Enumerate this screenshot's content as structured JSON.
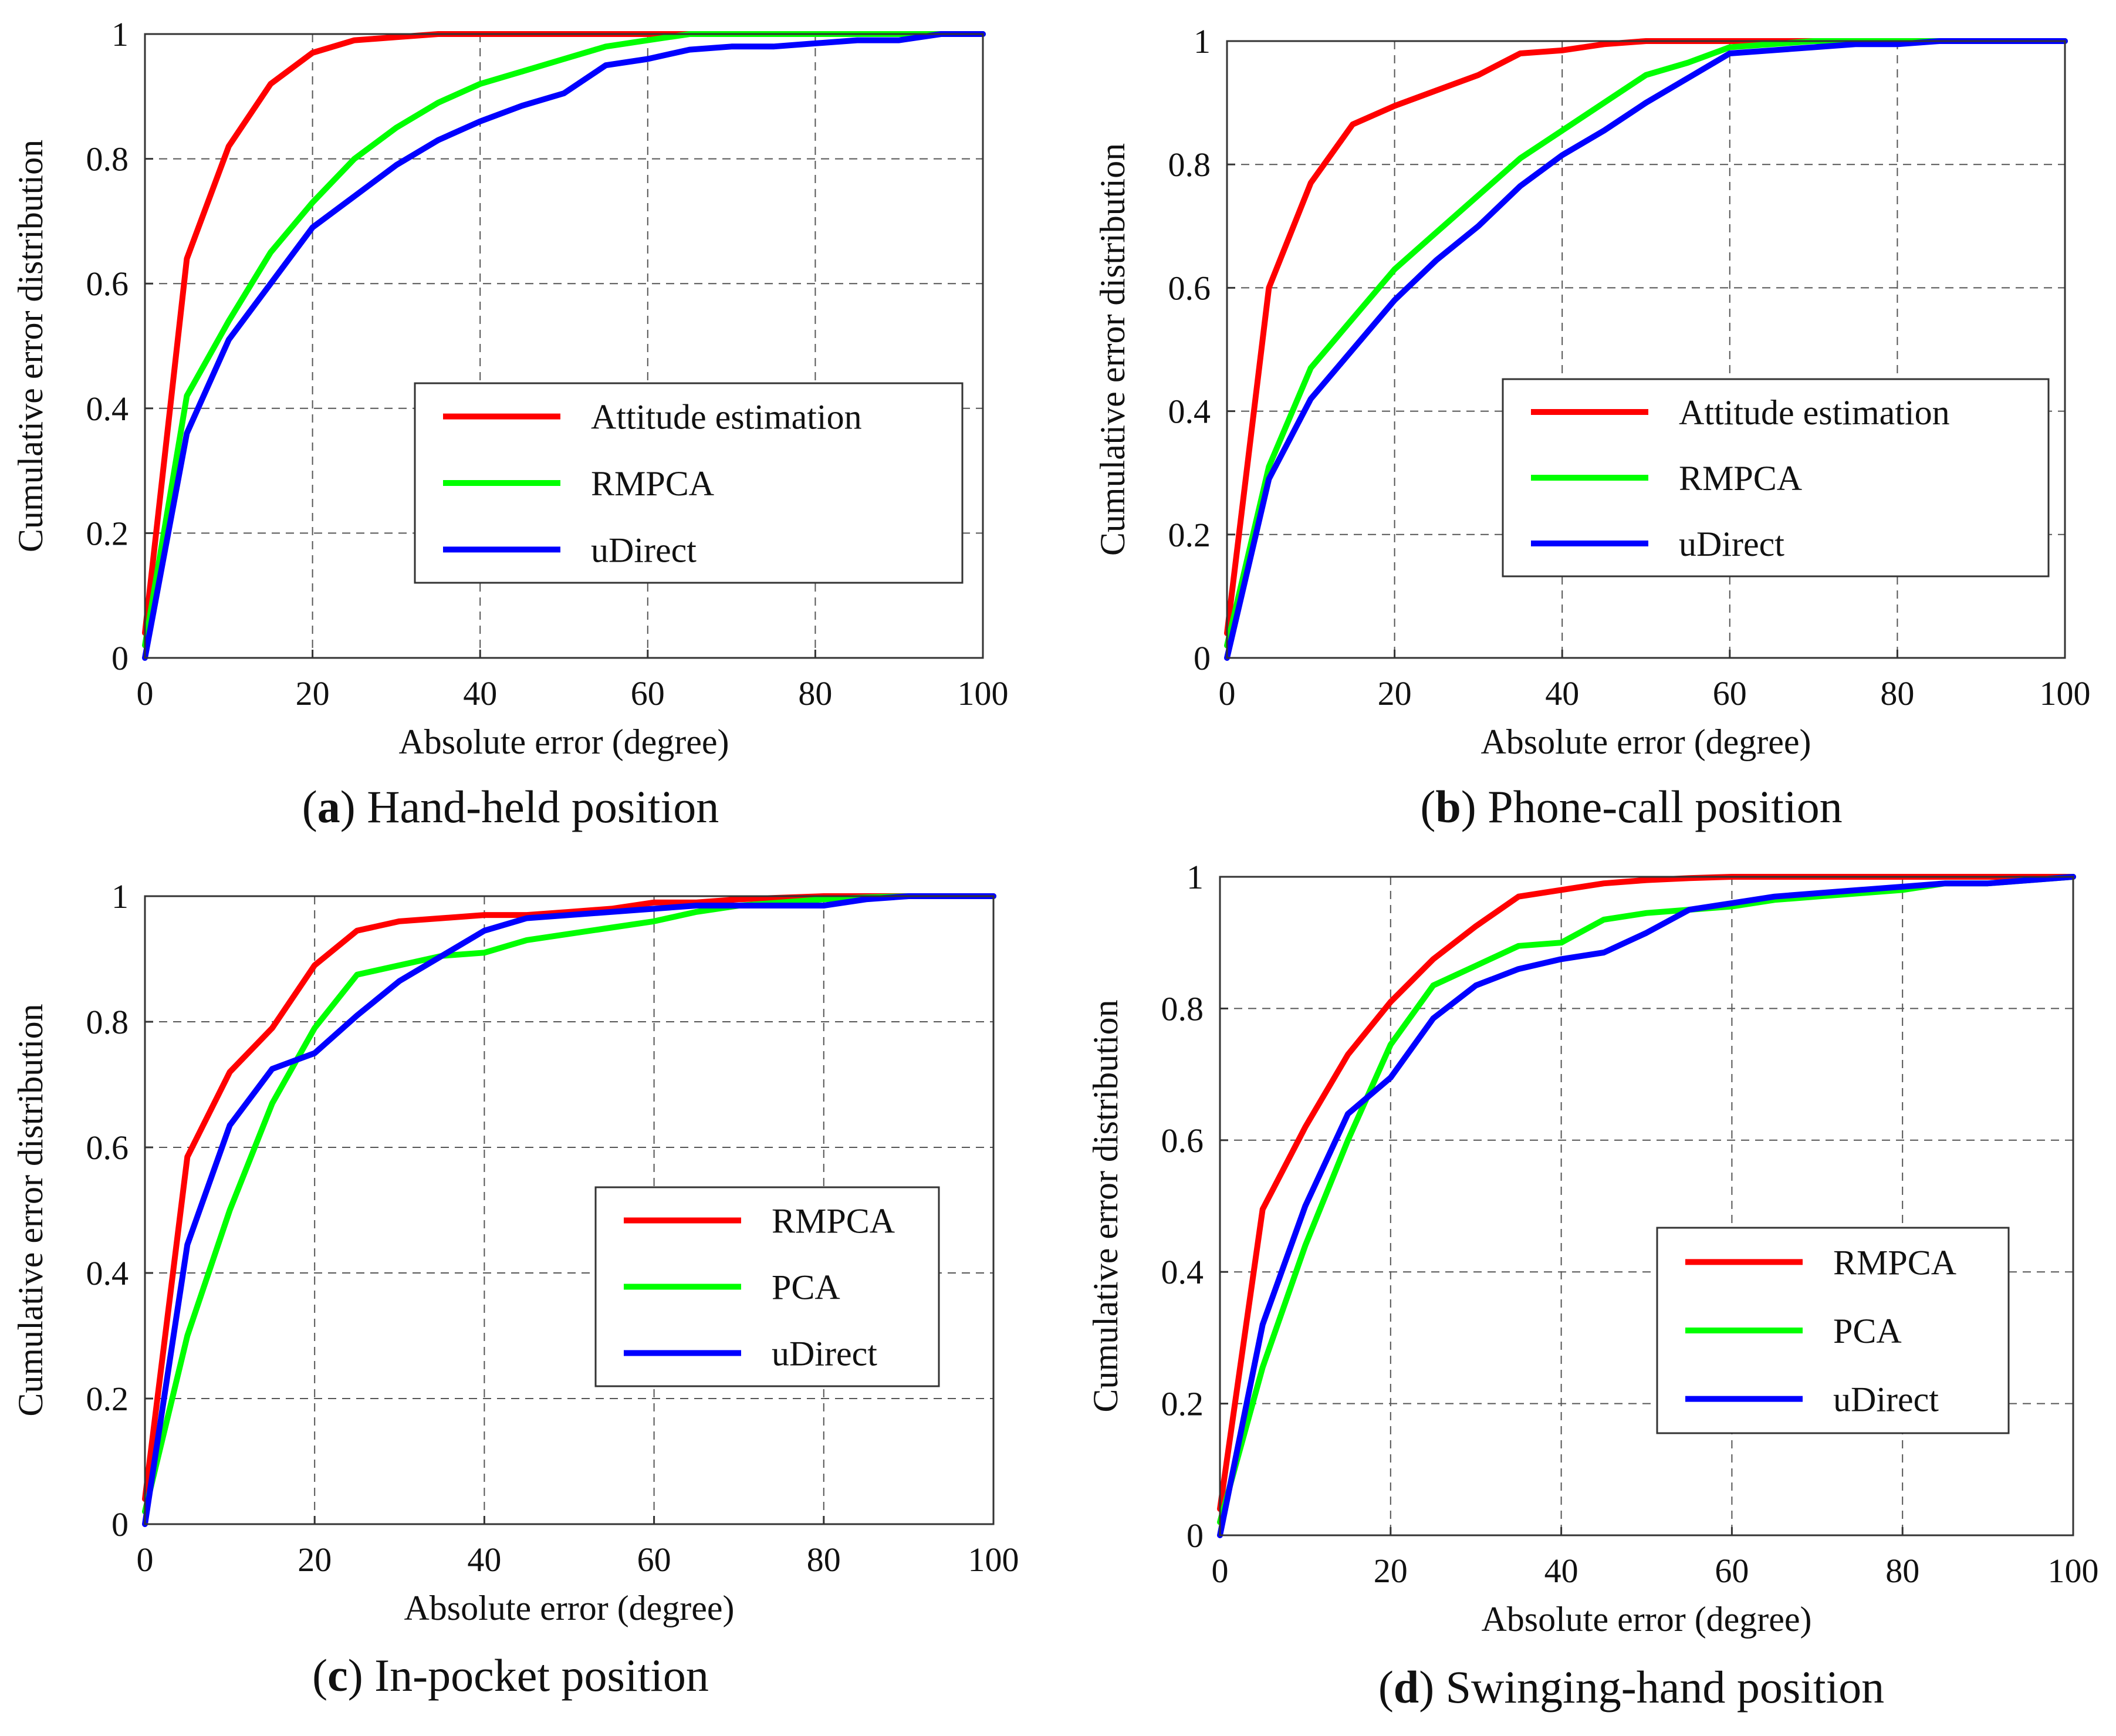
{
  "panels": [
    {
      "id": "a",
      "caption_letter": "a",
      "caption_text": " Hand-held position"
    },
    {
      "id": "b",
      "caption_letter": "b",
      "caption_text": " Phone-call position"
    },
    {
      "id": "c",
      "caption_letter": "c",
      "caption_text": " In-pocket position"
    },
    {
      "id": "d",
      "caption_letter": "d",
      "caption_text": " Swinging-hand position"
    }
  ],
  "chart_data": [
    {
      "type": "line",
      "xlabel": "Absolute error (degree)",
      "ylabel": "Cumulative error distribution",
      "xlim": [
        0,
        100
      ],
      "ylim": [
        0,
        1
      ],
      "xticks": [
        0,
        20,
        40,
        60,
        80,
        100
      ],
      "yticks": [
        0,
        0.2,
        0.4,
        0.6,
        0.8,
        1
      ],
      "ytick_labels": [
        "0",
        "0.2",
        "0.4",
        "0.6",
        "0.8",
        "1"
      ],
      "grid": true,
      "legend_position": "center-right",
      "series": [
        {
          "name": "Attitude estimation",
          "color": "#ff0000",
          "x": [
            0,
            5,
            10,
            15,
            20,
            25,
            30,
            35,
            40,
            50,
            100
          ],
          "y": [
            0.04,
            0.64,
            0.82,
            0.92,
            0.97,
            0.99,
            0.995,
            1.0,
            1.0,
            1.0,
            1.0
          ]
        },
        {
          "name": "RMPCA",
          "color": "#00ff00",
          "x": [
            0,
            5,
            10,
            15,
            20,
            25,
            30,
            35,
            40,
            45,
            50,
            55,
            60,
            65,
            70,
            80,
            90,
            100
          ],
          "y": [
            0.02,
            0.42,
            0.54,
            0.65,
            0.73,
            0.8,
            0.85,
            0.89,
            0.92,
            0.94,
            0.96,
            0.98,
            0.99,
            1.0,
            1.0,
            1.0,
            1.0,
            1.0
          ]
        },
        {
          "name": "uDirect",
          "color": "#0000ff",
          "x": [
            0,
            5,
            10,
            15,
            20,
            25,
            30,
            35,
            40,
            45,
            50,
            55,
            60,
            65,
            70,
            75,
            80,
            85,
            90,
            95,
            100
          ],
          "y": [
            0.0,
            0.36,
            0.51,
            0.6,
            0.69,
            0.74,
            0.79,
            0.83,
            0.86,
            0.885,
            0.905,
            0.95,
            0.96,
            0.975,
            0.98,
            0.98,
            0.985,
            0.99,
            0.99,
            1.0,
            1.0
          ]
        }
      ]
    },
    {
      "type": "line",
      "xlabel": "Absolute error (degree)",
      "ylabel": "Cumulative error distribution",
      "xlim": [
        0,
        100
      ],
      "ylim": [
        0,
        1
      ],
      "xticks": [
        0,
        20,
        40,
        60,
        80,
        100
      ],
      "yticks": [
        0,
        0.2,
        0.4,
        0.6,
        0.8,
        1
      ],
      "ytick_labels": [
        "0",
        "0.2",
        "0.4",
        "0.6",
        "0.8",
        "1"
      ],
      "grid": true,
      "legend_position": "center-right",
      "series": [
        {
          "name": "Attitude estimation",
          "color": "#ff0000",
          "x": [
            0,
            5,
            10,
            15,
            20,
            25,
            30,
            35,
            40,
            45,
            50,
            60,
            100
          ],
          "y": [
            0.04,
            0.6,
            0.77,
            0.865,
            0.895,
            0.92,
            0.945,
            0.98,
            0.985,
            0.995,
            1.0,
            1.0,
            1.0
          ]
        },
        {
          "name": "RMPCA",
          "color": "#00ff00",
          "x": [
            0,
            5,
            10,
            15,
            20,
            25,
            30,
            35,
            40,
            45,
            50,
            55,
            60,
            65,
            70,
            80,
            90,
            100
          ],
          "y": [
            0.02,
            0.31,
            0.47,
            0.55,
            0.63,
            0.69,
            0.75,
            0.81,
            0.855,
            0.9,
            0.945,
            0.965,
            0.99,
            0.995,
            1.0,
            1.0,
            1.0,
            1.0
          ]
        },
        {
          "name": "uDirect",
          "color": "#0000ff",
          "x": [
            0,
            5,
            10,
            15,
            20,
            25,
            30,
            35,
            40,
            45,
            50,
            55,
            60,
            65,
            70,
            75,
            80,
            85,
            90,
            100
          ],
          "y": [
            0.0,
            0.29,
            0.42,
            0.5,
            0.58,
            0.645,
            0.7,
            0.765,
            0.815,
            0.855,
            0.9,
            0.94,
            0.98,
            0.985,
            0.99,
            0.995,
            0.995,
            1.0,
            1.0,
            1.0
          ]
        }
      ]
    },
    {
      "type": "line",
      "xlabel": "Absolute error (degree)",
      "ylabel": "Cumulative error distribution",
      "xlim": [
        0,
        100
      ],
      "ylim": [
        0,
        1
      ],
      "xticks": [
        0,
        20,
        40,
        60,
        80,
        100
      ],
      "yticks": [
        0,
        0.2,
        0.4,
        0.6,
        0.8,
        1
      ],
      "ytick_labels": [
        "0",
        "0.2",
        "0.4",
        "0.6",
        "0.8",
        "1"
      ],
      "grid": true,
      "legend_position": "center-right",
      "series": [
        {
          "name": "RMPCA",
          "color": "#ff0000",
          "x": [
            0,
            5,
            10,
            15,
            20,
            25,
            30,
            35,
            40,
            45,
            50,
            55,
            60,
            65,
            70,
            80,
            100
          ],
          "y": [
            0.04,
            0.585,
            0.72,
            0.79,
            0.89,
            0.945,
            0.96,
            0.965,
            0.97,
            0.97,
            0.975,
            0.98,
            0.99,
            0.99,
            0.995,
            1.0,
            1.0
          ]
        },
        {
          "name": "PCA",
          "color": "#00ff00",
          "x": [
            0,
            5,
            10,
            15,
            20,
            25,
            30,
            35,
            40,
            45,
            50,
            55,
            60,
            65,
            70,
            75,
            80,
            85,
            90,
            100
          ],
          "y": [
            0.02,
            0.3,
            0.5,
            0.67,
            0.79,
            0.875,
            0.89,
            0.905,
            0.91,
            0.93,
            0.94,
            0.95,
            0.96,
            0.975,
            0.985,
            0.99,
            0.995,
            0.998,
            1.0,
            1.0
          ]
        },
        {
          "name": "uDirect",
          "color": "#0000ff",
          "x": [
            0,
            5,
            10,
            15,
            20,
            25,
            30,
            35,
            40,
            45,
            50,
            55,
            60,
            65,
            70,
            75,
            80,
            85,
            90,
            100
          ],
          "y": [
            0.0,
            0.445,
            0.635,
            0.725,
            0.75,
            0.81,
            0.865,
            0.905,
            0.945,
            0.965,
            0.97,
            0.975,
            0.98,
            0.985,
            0.985,
            0.985,
            0.985,
            0.995,
            1.0,
            1.0
          ]
        }
      ]
    },
    {
      "type": "line",
      "xlabel": "Absolute error (degree)",
      "ylabel": "Cumulative error distribution",
      "xlim": [
        0,
        100
      ],
      "ylim": [
        0,
        1
      ],
      "xticks": [
        0,
        20,
        40,
        60,
        80,
        100
      ],
      "yticks": [
        0,
        0.2,
        0.4,
        0.6,
        0.8,
        1
      ],
      "ytick_labels": [
        "0",
        "0.2",
        "0.4",
        "0.6",
        "0.8",
        "1"
      ],
      "grid": true,
      "legend_position": "center-right",
      "series": [
        {
          "name": "RMPCA",
          "color": "#ff0000",
          "x": [
            0,
            5,
            10,
            15,
            20,
            25,
            30,
            35,
            40,
            45,
            50,
            55,
            60,
            100
          ],
          "y": [
            0.04,
            0.495,
            0.62,
            0.73,
            0.81,
            0.875,
            0.925,
            0.97,
            0.98,
            0.99,
            0.995,
            0.998,
            1.0,
            1.0
          ]
        },
        {
          "name": "PCA",
          "color": "#00ff00",
          "x": [
            0,
            5,
            10,
            15,
            20,
            25,
            30,
            35,
            40,
            45,
            50,
            55,
            60,
            65,
            70,
            75,
            80,
            85,
            90,
            100
          ],
          "y": [
            0.02,
            0.255,
            0.44,
            0.6,
            0.745,
            0.835,
            0.865,
            0.895,
            0.9,
            0.935,
            0.945,
            0.95,
            0.955,
            0.965,
            0.97,
            0.975,
            0.98,
            0.99,
            0.99,
            1.0
          ]
        },
        {
          "name": "uDirect",
          "color": "#0000ff",
          "x": [
            0,
            5,
            10,
            15,
            20,
            25,
            30,
            35,
            40,
            45,
            50,
            55,
            60,
            65,
            70,
            75,
            80,
            85,
            90,
            95,
            100
          ],
          "y": [
            0.0,
            0.32,
            0.5,
            0.64,
            0.695,
            0.785,
            0.835,
            0.86,
            0.875,
            0.885,
            0.915,
            0.95,
            0.96,
            0.97,
            0.975,
            0.98,
            0.985,
            0.99,
            0.99,
            0.995,
            1.0
          ]
        }
      ]
    }
  ]
}
